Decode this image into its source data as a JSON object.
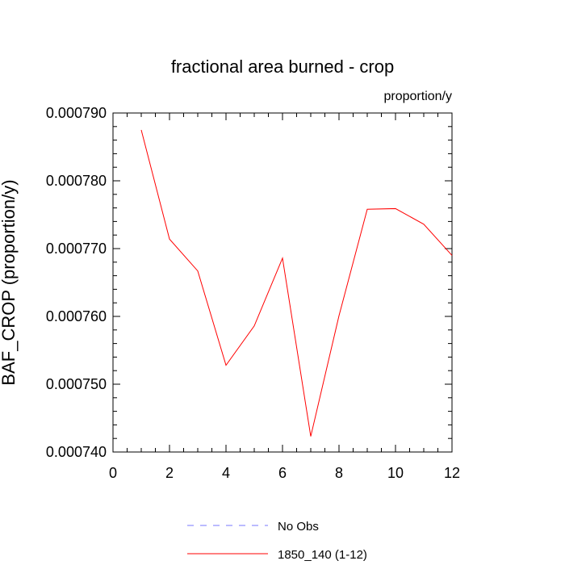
{
  "chart_data": {
    "type": "line",
    "title": "fractional area burned - crop",
    "units": "proportion/y",
    "ylabel": "BAF_CROP  (proportion/y)",
    "xlabel": "",
    "xlim": [
      0,
      12
    ],
    "ylim": [
      0.00074,
      0.00079
    ],
    "xticks": [
      0,
      2,
      4,
      6,
      8,
      10,
      12
    ],
    "yticks": [
      0.00074,
      0.00075,
      0.00076,
      0.00077,
      0.00078,
      0.00079
    ],
    "ytick_labels": [
      "0.000740",
      "0.000750",
      "0.000760",
      "0.000770",
      "0.000780",
      "0.000790"
    ],
    "grid": false,
    "legend_position": "bottom",
    "series": [
      {
        "name": "No Obs",
        "color": "#7777ff",
        "dash": "dashed",
        "x": [],
        "y": []
      },
      {
        "name": "1850_140 (1-12)",
        "color": "#ff0000",
        "dash": "solid",
        "x": [
          1,
          2,
          3,
          4,
          5,
          6,
          7,
          8,
          9,
          10,
          11,
          12
        ],
        "y": [
          0.0007875,
          0.0007714,
          0.0007667,
          0.0007528,
          0.0007586,
          0.0007686,
          0.0007423,
          0.0007601,
          0.0007758,
          0.0007759,
          0.0007736,
          0.000769
        ]
      }
    ]
  }
}
